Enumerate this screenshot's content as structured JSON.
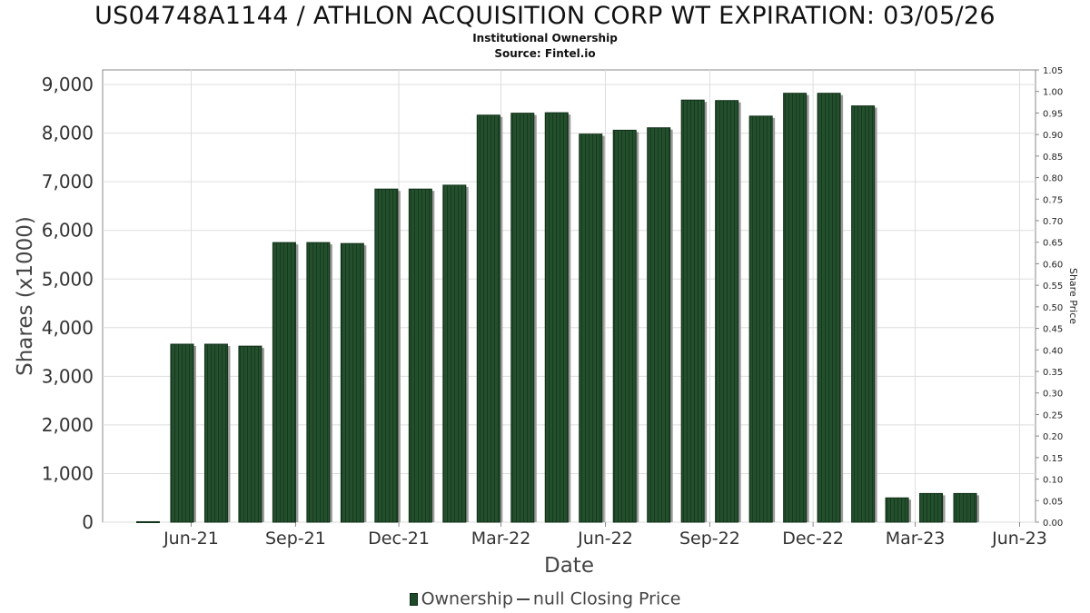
{
  "chart_data": {
    "type": "bar",
    "title": "US04748A1144 / ATHLON ACQUISITION CORP WT EXPIRATION: 03/05/26",
    "subtitle_lines": [
      "Institutional Ownership",
      "Source: Fintel.io"
    ],
    "xlabel": "Date",
    "ylabel": "Shares (x1000)",
    "y2label": "Share Price",
    "ylim": [
      0,
      9300
    ],
    "y2lim": [
      0,
      1.05
    ],
    "yticks": [
      0,
      1000,
      2000,
      3000,
      4000,
      5000,
      6000,
      7000,
      8000,
      9000
    ],
    "ytick_labels": [
      "0",
      "1,000",
      "2,000",
      "3,000",
      "4,000",
      "5,000",
      "6,000",
      "7,000",
      "8,000",
      "9,000"
    ],
    "y2ticks": [
      "0.00",
      "0.05",
      "0.10",
      "0.15",
      "0.20",
      "0.25",
      "0.30",
      "0.35",
      "0.40",
      "0.45",
      "0.50",
      "0.55",
      "0.60",
      "0.65",
      "0.70",
      "0.75",
      "0.80",
      "0.85",
      "0.90",
      "0.95",
      "1.00",
      "1.05"
    ],
    "xlim": [
      "2021-03-15",
      "2023-06-15"
    ],
    "xticks": [
      {
        "date": "2021-06-01",
        "label": "Jun-21"
      },
      {
        "date": "2021-09-01",
        "label": "Sep-21"
      },
      {
        "date": "2021-12-01",
        "label": "Dec-21"
      },
      {
        "date": "2022-03-01",
        "label": "Mar-22"
      },
      {
        "date": "2022-06-01",
        "label": "Jun-22"
      },
      {
        "date": "2022-09-01",
        "label": "Sep-22"
      },
      {
        "date": "2022-12-01",
        "label": "Dec-22"
      },
      {
        "date": "2023-03-01",
        "label": "Mar-23"
      },
      {
        "date": "2023-06-01",
        "label": "Jun-23"
      }
    ],
    "grid": true,
    "legend_position": "bottom",
    "series": [
      {
        "name": "Ownership",
        "color": "#1f4a2a",
        "points": [
          {
            "x": "2021-04-24",
            "y": 10
          },
          {
            "x": "2021-05-24",
            "y": 3660
          },
          {
            "x": "2021-06-23",
            "y": 3660
          },
          {
            "x": "2021-07-23",
            "y": 3620
          },
          {
            "x": "2021-08-22",
            "y": 5750
          },
          {
            "x": "2021-09-21",
            "y": 5750
          },
          {
            "x": "2021-10-21",
            "y": 5730
          },
          {
            "x": "2021-11-20",
            "y": 6850
          },
          {
            "x": "2021-12-20",
            "y": 6850
          },
          {
            "x": "2022-01-19",
            "y": 6930
          },
          {
            "x": "2022-02-18",
            "y": 8370
          },
          {
            "x": "2022-03-20",
            "y": 8410
          },
          {
            "x": "2022-04-19",
            "y": 8420
          },
          {
            "x": "2022-05-19",
            "y": 7980
          },
          {
            "x": "2022-06-18",
            "y": 8060
          },
          {
            "x": "2022-07-18",
            "y": 8110
          },
          {
            "x": "2022-08-17",
            "y": 8680
          },
          {
            "x": "2022-09-16",
            "y": 8670
          },
          {
            "x": "2022-10-16",
            "y": 8350
          },
          {
            "x": "2022-11-15",
            "y": 8820
          },
          {
            "x": "2022-12-15",
            "y": 8820
          },
          {
            "x": "2023-01-14",
            "y": 8560
          },
          {
            "x": "2023-02-13",
            "y": 500
          },
          {
            "x": "2023-03-15",
            "y": 590
          },
          {
            "x": "2023-04-14",
            "y": 590
          }
        ]
      },
      {
        "name": "null Closing Price",
        "color": "#444444",
        "points": []
      }
    ]
  }
}
